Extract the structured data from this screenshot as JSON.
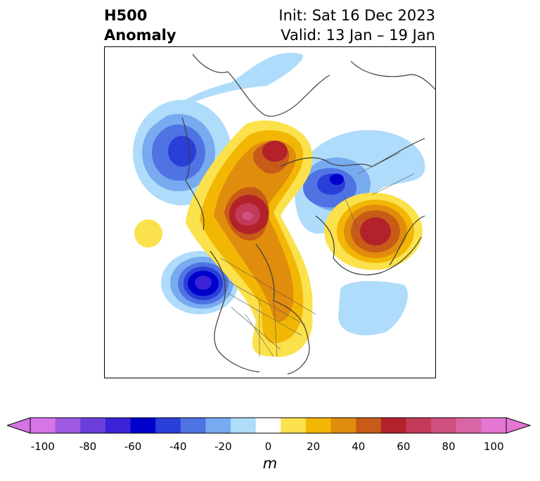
{
  "header": {
    "title_line1": "H500",
    "title_line2": "Anomaly",
    "init": "Init: Sat 16 Dec 2023",
    "valid": "Valid: 13 Jan – 19 Jan"
  },
  "colorbar": {
    "unit": "m",
    "min": -100,
    "max": 100,
    "step": 10,
    "extend": "both",
    "ticks": [
      "-100",
      "-80",
      "-60",
      "-40",
      "-20",
      "0",
      "20",
      "40",
      "60",
      "80",
      "100"
    ],
    "colors": [
      "#d673e6",
      "#9e5ae0",
      "#6a3fdb",
      "#3a22d6",
      "#0000cc",
      "#2a3ed8",
      "#4f73e3",
      "#78aaf0",
      "#aedcfa",
      "#ffffff",
      "#fbe14b",
      "#f2b705",
      "#e08c0d",
      "#c75b17",
      "#b3222a",
      "#c23a57",
      "#cf4f7e",
      "#d866a6",
      "#e476d4"
    ],
    "neg_end_color": "#d673e6",
    "pos_end_color": "#e476d4"
  }
}
